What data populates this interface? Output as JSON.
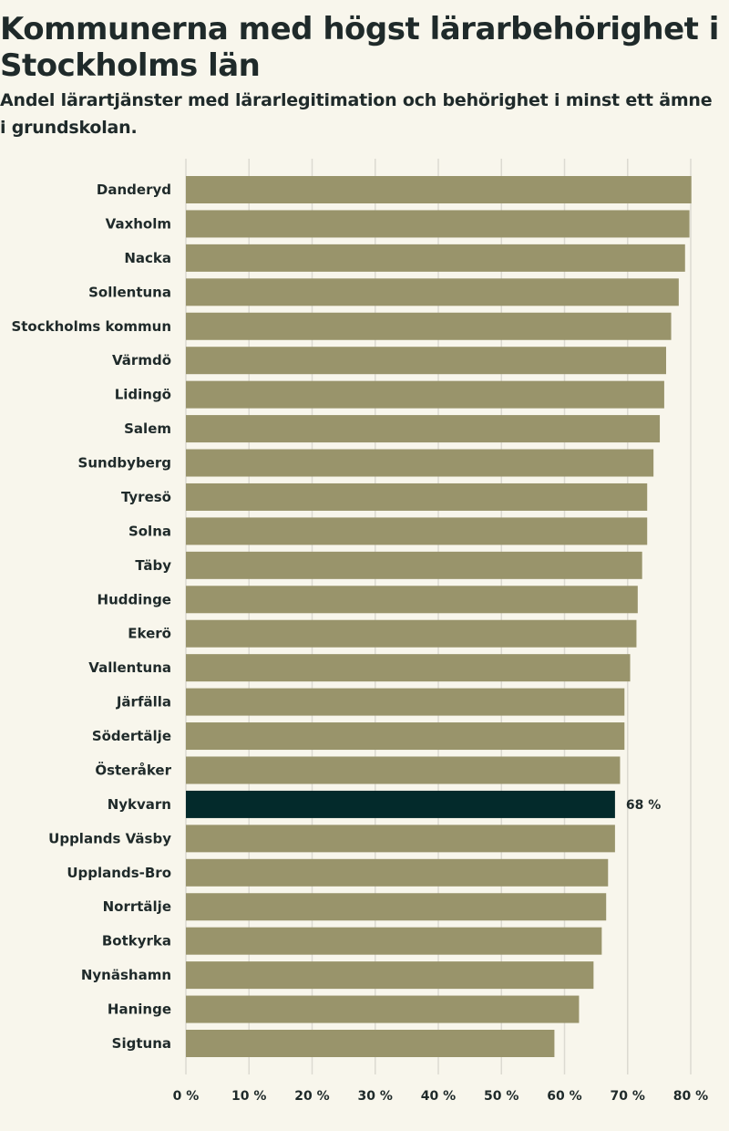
{
  "title": "Kommunerna med högst lärarbehörighet i Stockholms län",
  "subtitle": "Andel lärartjänster med lärarlegitimation och behörighet i minst ett ämne i grundskolan.",
  "colors": {
    "background": "#f8f6ec",
    "bar": "#99946b",
    "highlight": "#032a2b",
    "grid": "#dcdad1",
    "text": "#1f2a2a"
  },
  "chart_data": {
    "type": "bar",
    "orientation": "horizontal",
    "title": "Kommunerna med högst lärarbehörighet i Stockholms län",
    "subtitle": "Andel lärartjänster med lärarlegitimation och behörighet i minst ett ämne i grundskolan.",
    "xlabel": "",
    "ylabel": "",
    "xlim": [
      0,
      80
    ],
    "ticks": [
      0,
      10,
      20,
      30,
      40,
      50,
      60,
      70,
      80
    ],
    "tick_labels": [
      "0 %",
      "10 %",
      "20 %",
      "30 %",
      "40 %",
      "50 %",
      "60 %",
      "70 %",
      "80 %"
    ],
    "grid": true,
    "categories": [
      "Danderyd",
      "Vaxholm",
      "Nacka",
      "Sollentuna",
      "Stockholms kommun",
      "Värmdö",
      "Lidingö",
      "Salem",
      "Sundbyberg",
      "Tyresö",
      "Solna",
      "Täby",
      "Huddinge",
      "Ekerö",
      "Vallentuna",
      "Järfälla",
      "Södertälje",
      "Österåker",
      "Nykvarn",
      "Upplands Väsby",
      "Upplands-Bro",
      "Norrtälje",
      "Botkyrka",
      "Nynäshamn",
      "Haninge",
      "Sigtuna"
    ],
    "values": [
      80.1,
      79.8,
      79.1,
      78.1,
      76.9,
      76.1,
      75.8,
      75.1,
      74.1,
      73.1,
      73.1,
      72.3,
      71.6,
      71.4,
      70.4,
      69.5,
      69.5,
      68.8,
      68.0,
      68.0,
      66.9,
      66.6,
      65.9,
      64.6,
      62.3,
      58.4
    ],
    "highlight": {
      "category": "Nykvarn",
      "label": "68 %"
    }
  }
}
